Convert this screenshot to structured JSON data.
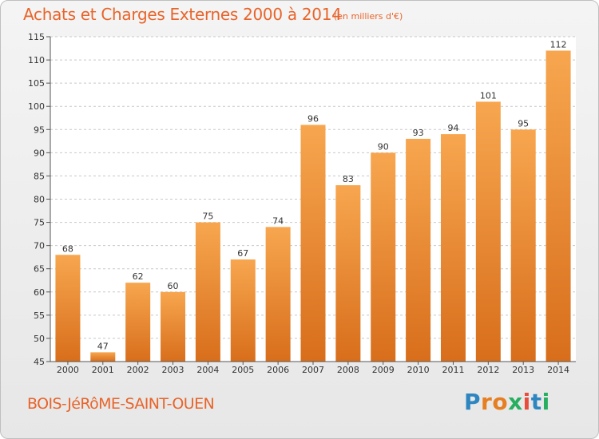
{
  "title": "Achats et Charges Externes 2000 à 2014",
  "subtitle": "(en milliers d'€)",
  "commune": "BOIS-JéRôME-SAINT-OUEN",
  "logo": {
    "text": "Proxiti",
    "letter_colors": [
      "#2E86C1",
      "#E67E22",
      "#E67E22",
      "#27AE60",
      "#E74C3C",
      "#2E86C1",
      "#27AE60"
    ]
  },
  "colors": {
    "accent": "#E8642A",
    "bar_light": "#F7A64F",
    "bar_dark": "#D86E1C",
    "plot_bg": "#ffffff",
    "grid": "#c8c8c8"
  },
  "chart_data": {
    "type": "bar",
    "categories": [
      "2000",
      "2001",
      "2002",
      "2003",
      "2004",
      "2005",
      "2006",
      "2007",
      "2008",
      "2009",
      "2010",
      "2011",
      "2012",
      "2013",
      "2014"
    ],
    "values": [
      68,
      47,
      62,
      60,
      75,
      67,
      74,
      96,
      83,
      90,
      93,
      94,
      101,
      95,
      112
    ],
    "ylim": [
      45,
      115
    ],
    "yticks": [
      45,
      50,
      55,
      60,
      65,
      70,
      75,
      80,
      85,
      90,
      95,
      100,
      105,
      110,
      115
    ],
    "grid": true,
    "data_labels": true
  }
}
